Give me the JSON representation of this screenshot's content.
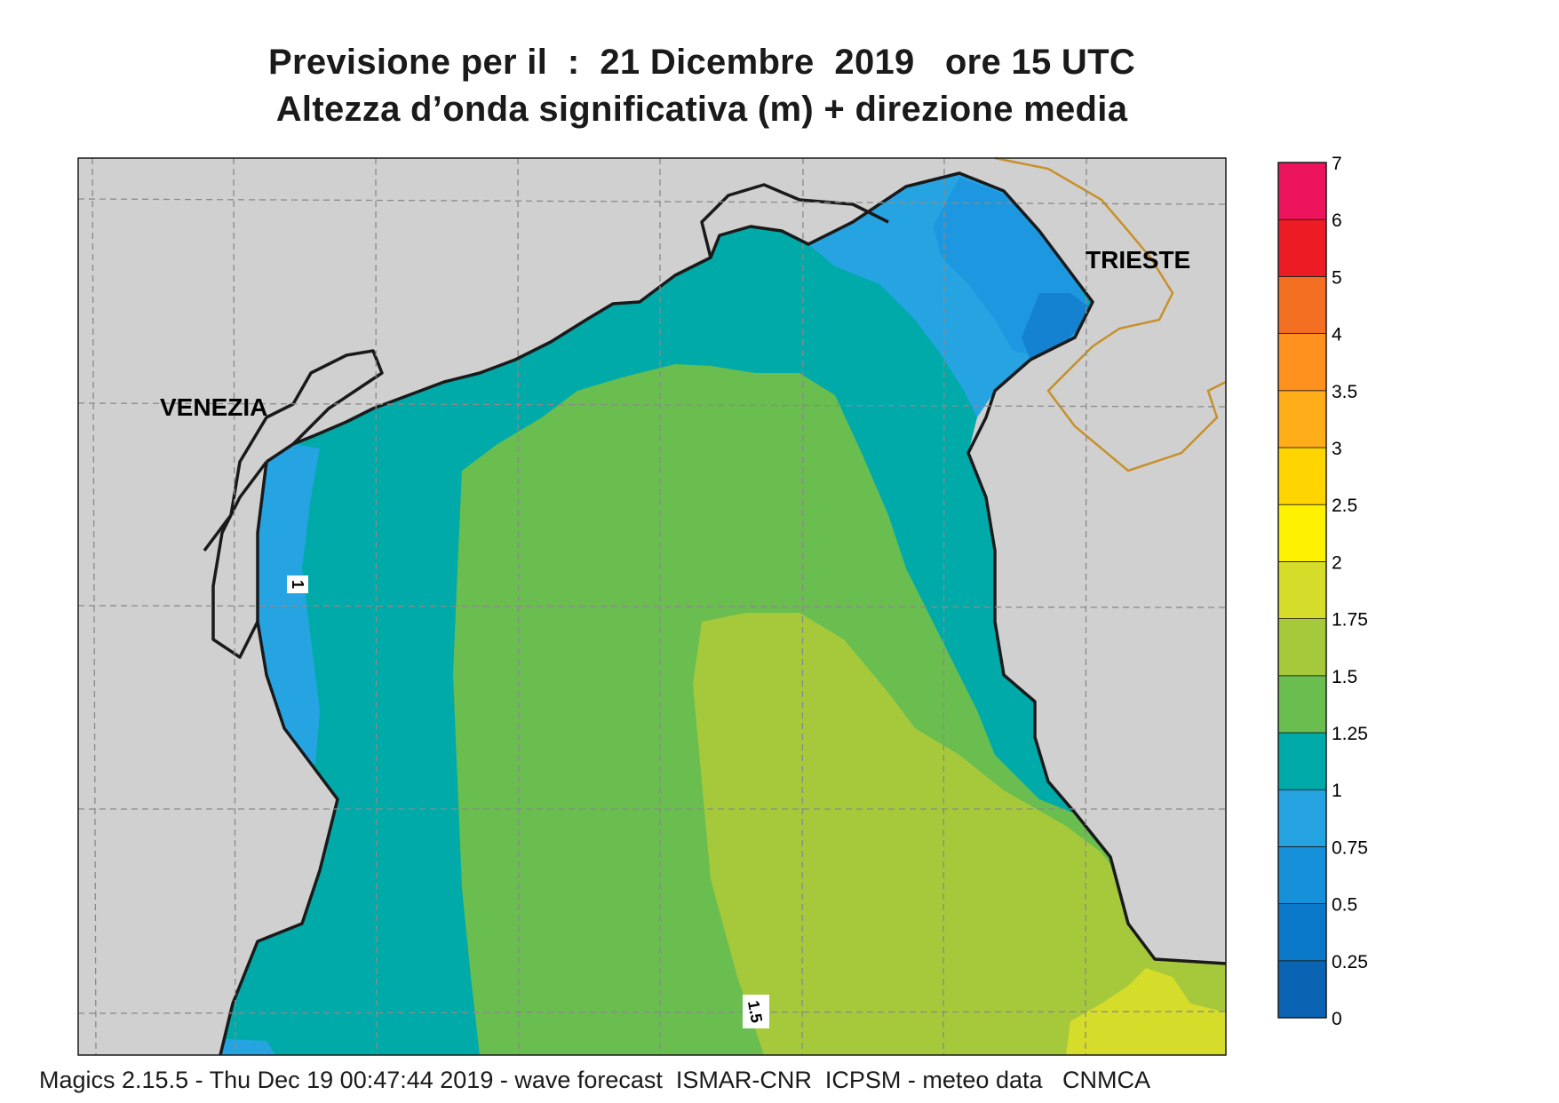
{
  "title": {
    "line1": "Previsione per il  :  21 Dicembre  2019   ore 15 UTC",
    "line2": "Altezza d’onda significativa (m) + direzione media"
  },
  "cities": {
    "venezia": "VENEZIA",
    "trieste": "TRIESTE"
  },
  "contour_labels": {
    "c1": "1",
    "c15": "1.5"
  },
  "legend": {
    "levels": [
      "0",
      "0.25",
      "0.5",
      "0.75",
      "1",
      "1.25",
      "1.5",
      "1.75",
      "2",
      "2.5",
      "3",
      "3.5",
      "4",
      "5",
      "6",
      "7"
    ],
    "colors": [
      "#0b63b4",
      "#0a78c8",
      "#1690d8",
      "#24a3e0",
      "#00aaa9",
      "#6abd4f",
      "#a6c93b",
      "#d6dc2a",
      "#fff200",
      "#ffd500",
      "#ffad18",
      "#ff921e",
      "#f37022",
      "#ed1c24",
      "#ec145d"
    ]
  },
  "colors": {
    "land": "#d0d0d0",
    "sea_025_05": "#1482d0",
    "sea_05_075": "#1d98e0",
    "sea_075_1": "#26a4e2",
    "sea_1_125": "#00aaa9",
    "sea_125_15": "#6abd4f",
    "sea_15_175": "#a6c93b",
    "sea_175_2": "#d6dc2a",
    "coast": "#1a1a1a",
    "border": "#c8902a"
  },
  "footer": "Magics 2.15.5 - Thu Dec 19 00:47:44 2019 - wave forecast  ISMAR-CNR  ICPSM - meteo data   CNMCA"
}
